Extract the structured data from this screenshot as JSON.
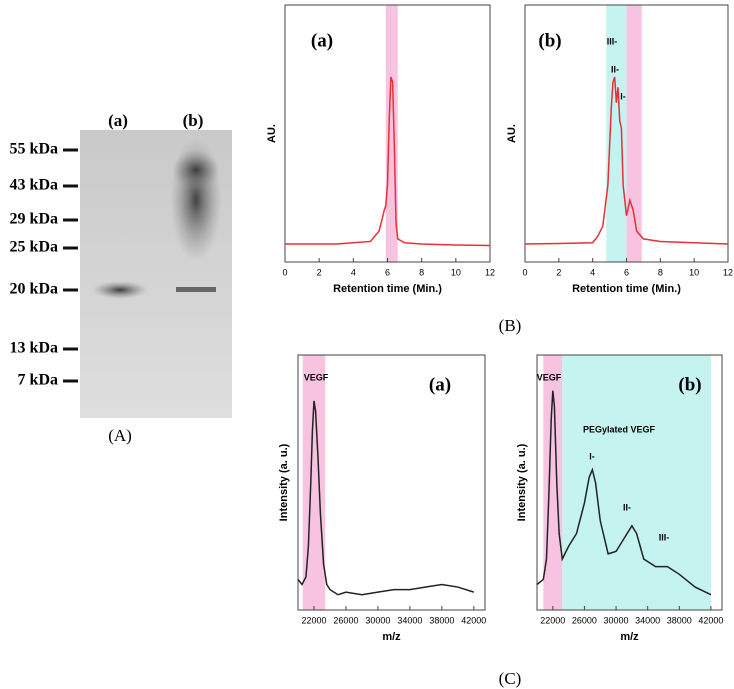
{
  "gel": {
    "lanes": [
      "(a)",
      "(b)"
    ],
    "markers": [
      "55 kDa",
      "43 kDa",
      "29 kDa",
      "25 kDa",
      "20 kDa",
      "13 kDa",
      "7 kDa"
    ],
    "caption": "(A)"
  },
  "captions": {
    "B": "(B)",
    "C": "(C)"
  },
  "chart_data": [
    {
      "type": "line",
      "panel": "(a)",
      "x_label": "Retention time (Min.)",
      "y_label": "AU.",
      "xlim": [
        0,
        12
      ],
      "xticks": [
        0,
        2,
        4,
        6,
        8,
        10,
        12
      ],
      "ylim": [
        0,
        1
      ],
      "highlights": [
        {
          "from": 5.9,
          "to": 6.6,
          "color": "#f7c3e0"
        }
      ],
      "annotations": [],
      "series": [
        {
          "color": "#e8303a",
          "x": [
            0,
            1,
            2,
            3,
            4,
            5,
            5.5,
            5.7,
            5.8,
            5.9,
            6.0,
            6.1,
            6.2,
            6.3,
            6.4,
            6.5,
            6.6,
            7,
            8,
            9,
            10,
            11,
            12
          ],
          "values": [
            0.07,
            0.07,
            0.07,
            0.07,
            0.075,
            0.08,
            0.12,
            0.17,
            0.2,
            0.22,
            0.3,
            0.55,
            0.72,
            0.7,
            0.45,
            0.15,
            0.09,
            0.075,
            0.07,
            0.068,
            0.066,
            0.065,
            0.064
          ]
        }
      ]
    },
    {
      "type": "line",
      "panel": "(b)",
      "x_label": "Retention time (Min.)",
      "y_label": "AU.",
      "xlim": [
        0,
        12
      ],
      "xticks": [
        0,
        2,
        4,
        6,
        8,
        10,
        12
      ],
      "ylim": [
        0,
        1
      ],
      "highlights": [
        {
          "from": 4.8,
          "to": 6.0,
          "color": "#c5f3f0"
        },
        {
          "from": 6.0,
          "to": 6.9,
          "color": "#f7c3e0"
        }
      ],
      "annotations": [
        "III-",
        "II-",
        "I-"
      ],
      "series": [
        {
          "color": "#e8303a",
          "x": [
            0,
            2,
            4,
            4.3,
            4.6,
            4.9,
            5.1,
            5.2,
            5.3,
            5.4,
            5.5,
            5.6,
            5.7,
            5.8,
            6.0,
            6.2,
            6.4,
            6.6,
            7,
            8,
            10,
            12
          ],
          "values": [
            0.07,
            0.072,
            0.075,
            0.1,
            0.14,
            0.3,
            0.6,
            0.7,
            0.72,
            0.62,
            0.68,
            0.55,
            0.52,
            0.3,
            0.18,
            0.24,
            0.2,
            0.12,
            0.09,
            0.08,
            0.075,
            0.07
          ]
        }
      ]
    },
    {
      "type": "line",
      "panel": "(a)",
      "x_label": "m/z",
      "y_label": "Intensity (a. u.)",
      "xlim": [
        20000,
        43400
      ],
      "xticks": [
        22000,
        26000,
        30000,
        34000,
        38000,
        42000
      ],
      "ylim": [
        0,
        1
      ],
      "highlights": [
        {
          "from": 20600,
          "to": 23400,
          "color": "#f7c3e0"
        }
      ],
      "annotations": [
        "VEGF"
      ],
      "series": [
        {
          "color": "#222222",
          "x": [
            20000,
            20500,
            21000,
            21300,
            21600,
            21800,
            22000,
            22200,
            22500,
            22800,
            23200,
            23600,
            24000,
            25000,
            26000,
            28000,
            30000,
            32000,
            34000,
            36000,
            38000,
            40000,
            42000
          ],
          "values": [
            0.12,
            0.1,
            0.13,
            0.25,
            0.5,
            0.7,
            0.82,
            0.78,
            0.6,
            0.38,
            0.18,
            0.1,
            0.08,
            0.06,
            0.07,
            0.06,
            0.07,
            0.08,
            0.08,
            0.09,
            0.1,
            0.09,
            0.07
          ]
        }
      ]
    },
    {
      "type": "line",
      "panel": "(b)",
      "x_label": "m/z",
      "y_label": "Intensity (a. u.)",
      "xlim": [
        20000,
        43400
      ],
      "xticks": [
        22000,
        26000,
        30000,
        34000,
        38000,
        42000
      ],
      "ylim": [
        0,
        1
      ],
      "highlights": [
        {
          "from": 20800,
          "to": 23200,
          "color": "#f7c3e0"
        },
        {
          "from": 23200,
          "to": 42000,
          "color": "#c5f3f0"
        }
      ],
      "annotations": [
        "VEGF",
        "PEGylated VEGF",
        "I-",
        "II-",
        "III-"
      ],
      "series": [
        {
          "color": "#222222",
          "x": [
            20000,
            20800,
            21200,
            21500,
            21800,
            22000,
            22200,
            22500,
            22800,
            23200,
            24000,
            25000,
            26000,
            26600,
            27000,
            27400,
            28000,
            29000,
            30000,
            31000,
            32000,
            32600,
            33500,
            35000,
            36500,
            38000,
            40000,
            42000
          ],
          "values": [
            0.1,
            0.12,
            0.2,
            0.45,
            0.75,
            0.86,
            0.8,
            0.5,
            0.3,
            0.2,
            0.25,
            0.3,
            0.42,
            0.52,
            0.55,
            0.5,
            0.35,
            0.22,
            0.23,
            0.28,
            0.33,
            0.3,
            0.2,
            0.17,
            0.17,
            0.14,
            0.09,
            0.06
          ]
        }
      ]
    }
  ]
}
